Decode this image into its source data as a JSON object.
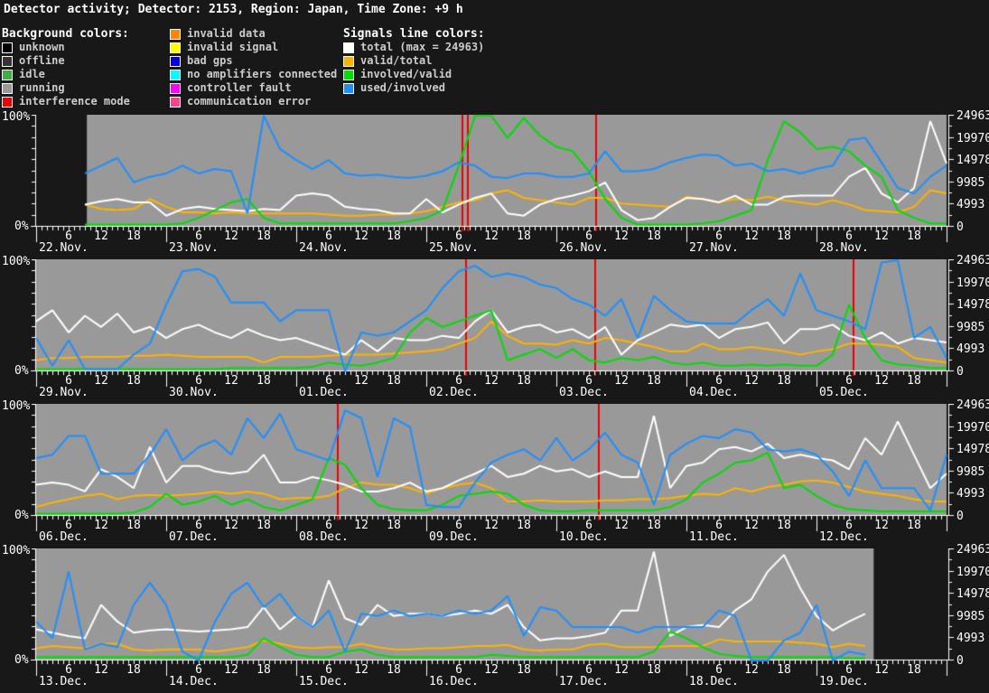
{
  "title": "Detector activity; Detector: 2153, Region: Japan, Time Zone: +9 h",
  "legend": {
    "background_header": "Background colors:",
    "background_items": [
      {
        "label": "unknown",
        "color": "#000000"
      },
      {
        "label": "offline",
        "color": "#333333"
      },
      {
        "label": "idle",
        "color": "#44aa44"
      },
      {
        "label": "running",
        "color": "#999999"
      },
      {
        "label": "interference mode",
        "color": "#ee0000"
      }
    ],
    "status_items": [
      {
        "label": "invalid data",
        "color": "#ff8800"
      },
      {
        "label": "invalid signal",
        "color": "#ffff00"
      },
      {
        "label": "bad gps",
        "color": "#0000dd"
      },
      {
        "label": "no amplifiers connected",
        "color": "#00ffff"
      },
      {
        "label": "controller fault",
        "color": "#ff00ff"
      },
      {
        "label": "communication error",
        "color": "#ff4488"
      }
    ],
    "signals_header": "Signals line colors:",
    "signal_items": [
      {
        "label": "total (max = 24963)",
        "color": "#ffffff"
      },
      {
        "label": "valid/total",
        "color": "#ffb300"
      },
      {
        "label": "involved/valid",
        "color": "#00dd00"
      },
      {
        "label": "used/involved",
        "color": "#1e8fff"
      }
    ]
  },
  "axes": {
    "left_top": "100%",
    "left_bottom": "0%",
    "right_labels": [
      "24963",
      "19970",
      "14978",
      "9985",
      "4993",
      "0"
    ],
    "hour_labels": [
      6,
      12,
      18
    ],
    "max_total": 24963
  },
  "colors": {
    "page_bg": "#181818",
    "axis": "#ffffff",
    "running_bg": "#999999",
    "interference": "#ee0000",
    "total": "#ffffff",
    "valid_total": "#ffb300",
    "involved_valid": "#00dd00",
    "used_involved": "#1e8fff"
  },
  "chart_data": {
    "type": "line",
    "title": "Detector activity; Detector: 2153, Region: Japan, Time Zone: +9 h",
    "ylabel_left": "percent (0-100%)",
    "ylabel_right_max": 24963,
    "x_step_hours": 3,
    "legend_position": "top",
    "grid": false,
    "charts": [
      {
        "name": "week-1",
        "days": [
          "22.Nov.",
          "23.Nov.",
          "24.Nov.",
          "25.Nov.",
          "26.Nov.",
          "27.Nov.",
          "28.Nov."
        ],
        "bg_segments": [
          {
            "state": "running",
            "from_day": 0.39,
            "to_day": 7.0
          }
        ],
        "red_lines_day": [
          3.27,
          3.31,
          4.3
        ],
        "series": {
          "total": [
            null,
            null,
            null,
            20,
            23,
            25,
            22,
            22,
            10,
            16,
            18,
            16,
            15,
            14,
            16,
            15,
            28,
            30,
            28,
            18,
            16,
            15,
            12,
            12,
            25,
            13,
            20,
            26,
            30,
            12,
            10,
            20,
            25,
            28,
            32,
            40,
            15,
            6,
            8,
            18,
            26,
            25,
            22,
            28,
            20,
            20,
            27,
            28,
            28,
            28,
            45,
            53,
            30,
            22,
            35,
            95,
            57
          ],
          "valid_total": [
            null,
            null,
            null,
            20,
            16,
            15,
            16,
            25,
            18,
            13,
            13,
            12,
            13,
            12,
            12,
            12,
            12,
            12,
            11,
            10,
            10,
            11,
            11,
            12,
            14,
            18,
            22,
            24,
            30,
            33,
            26,
            24,
            22,
            20,
            26,
            26,
            21,
            20,
            19,
            18,
            27,
            25,
            22,
            25,
            24,
            27,
            24,
            22,
            20,
            24,
            20,
            15,
            14,
            13,
            18,
            33,
            30
          ],
          "involved_valid": [
            null,
            null,
            null,
            2,
            2,
            2,
            2,
            2,
            2,
            3,
            8,
            15,
            22,
            25,
            8,
            3,
            3,
            3,
            3,
            3,
            3,
            3,
            3,
            5,
            8,
            15,
            55,
            100,
            100,
            80,
            98,
            82,
            72,
            68,
            50,
            25,
            8,
            2,
            2,
            2,
            2,
            3,
            5,
            10,
            15,
            60,
            95,
            85,
            70,
            72,
            68,
            55,
            45,
            15,
            8,
            3,
            3
          ],
          "used_involved": [
            null,
            null,
            null,
            48,
            55,
            62,
            40,
            45,
            48,
            55,
            48,
            52,
            50,
            12,
            100,
            70,
            60,
            52,
            60,
            48,
            46,
            47,
            45,
            44,
            46,
            50,
            58,
            55,
            45,
            44,
            48,
            48,
            45,
            45,
            48,
            68,
            50,
            50,
            52,
            58,
            62,
            65,
            64,
            55,
            57,
            50,
            52,
            48,
            52,
            55,
            78,
            80,
            58,
            35,
            30,
            45,
            55
          ]
        }
      },
      {
        "name": "week-2",
        "days": [
          "29.Nov.",
          "30.Nov.",
          "01.Dec.",
          "02.Dec.",
          "03.Dec.",
          "04.Dec.",
          "05.Dec."
        ],
        "bg_segments": [
          {
            "state": "running",
            "from_day": 0.0,
            "to_day": 7.0
          }
        ],
        "red_lines_day": [
          3.3,
          4.29,
          6.28
        ],
        "series": {
          "total": [
            45,
            55,
            35,
            50,
            40,
            52,
            35,
            40,
            30,
            38,
            42,
            35,
            30,
            38,
            32,
            28,
            30,
            25,
            20,
            15,
            28,
            18,
            30,
            28,
            28,
            32,
            30,
            45,
            55,
            35,
            40,
            42,
            35,
            38,
            30,
            40,
            15,
            28,
            35,
            42,
            40,
            42,
            30,
            38,
            40,
            44,
            25,
            38,
            38,
            42,
            32,
            28,
            35,
            25,
            30,
            28,
            26
          ],
          "valid_total": [
            10,
            12,
            12,
            13,
            13,
            13,
            14,
            14,
            15,
            14,
            13,
            13,
            13,
            13,
            8,
            13,
            13,
            13,
            14,
            15,
            15,
            15,
            16,
            17,
            18,
            20,
            25,
            30,
            45,
            32,
            25,
            25,
            24,
            28,
            25,
            30,
            28,
            25,
            22,
            18,
            18,
            25,
            20,
            20,
            22,
            20,
            18,
            15,
            18,
            20,
            25,
            25,
            24,
            22,
            12,
            10,
            8
          ],
          "involved_valid": [
            2,
            2,
            2,
            2,
            2,
            2,
            2,
            2,
            2,
            2,
            2,
            2,
            3,
            3,
            3,
            3,
            3,
            4,
            8,
            6,
            5,
            8,
            12,
            35,
            48,
            40,
            45,
            50,
            55,
            10,
            15,
            20,
            12,
            20,
            10,
            8,
            12,
            10,
            13,
            8,
            6,
            8,
            5,
            5,
            6,
            5,
            6,
            5,
            5,
            15,
            60,
            30,
            10,
            6,
            5,
            3,
            3
          ],
          "used_involved": [
            30,
            5,
            28,
            2,
            2,
            2,
            15,
            25,
            60,
            90,
            92,
            85,
            62,
            62,
            62,
            45,
            55,
            55,
            55,
            0,
            35,
            32,
            35,
            45,
            55,
            75,
            90,
            95,
            85,
            88,
            85,
            78,
            75,
            65,
            60,
            50,
            65,
            30,
            68,
            55,
            45,
            43,
            43,
            43,
            55,
            65,
            50,
            88,
            55,
            50,
            45,
            38,
            98,
            100,
            30,
            40,
            12
          ]
        }
      },
      {
        "name": "week-3",
        "days": [
          "06.Dec.",
          "07.Dec.",
          "08.Dec.",
          "09.Dec.",
          "10.Dec.",
          "11.Dec.",
          "12.Dec."
        ],
        "bg_segments": [
          {
            "state": "running",
            "from_day": 0.0,
            "to_day": 7.0
          }
        ],
        "red_lines_day": [
          2.31,
          4.32
        ],
        "series": {
          "total": [
            28,
            30,
            28,
            22,
            42,
            35,
            25,
            62,
            30,
            45,
            45,
            40,
            38,
            40,
            55,
            30,
            30,
            35,
            32,
            28,
            22,
            22,
            25,
            30,
            22,
            25,
            32,
            38,
            45,
            35,
            38,
            45,
            40,
            42,
            35,
            40,
            35,
            35,
            90,
            25,
            45,
            48,
            60,
            62,
            58,
            65,
            52,
            55,
            52,
            50,
            42,
            70,
            55,
            85,
            55,
            25,
            38
          ],
          "valid_total": [
            8,
            12,
            15,
            18,
            20,
            15,
            18,
            19,
            18,
            19,
            20,
            22,
            20,
            22,
            20,
            15,
            16,
            16,
            18,
            25,
            30,
            28,
            28,
            25,
            20,
            25,
            28,
            30,
            25,
            13,
            13,
            14,
            13,
            13,
            13,
            14,
            14,
            15,
            15,
            16,
            18,
            20,
            19,
            25,
            22,
            26,
            28,
            31,
            32,
            30,
            26,
            22,
            20,
            18,
            15,
            13,
            13
          ],
          "involved_valid": [
            2,
            2,
            2,
            2,
            2,
            2,
            3,
            8,
            20,
            10,
            13,
            18,
            10,
            15,
            8,
            5,
            10,
            15,
            52,
            46,
            25,
            10,
            6,
            5,
            5,
            10,
            18,
            20,
            22,
            20,
            10,
            5,
            4,
            4,
            5,
            5,
            5,
            5,
            5,
            8,
            15,
            30,
            38,
            48,
            50,
            57,
            25,
            28,
            18,
            10,
            6,
            5,
            4,
            4,
            4,
            4,
            4
          ],
          "used_involved": [
            52,
            55,
            72,
            72,
            38,
            38,
            38,
            55,
            78,
            50,
            62,
            68,
            55,
            88,
            70,
            92,
            60,
            55,
            50,
            95,
            88,
            35,
            88,
            80,
            10,
            8,
            8,
            30,
            48,
            55,
            60,
            50,
            70,
            50,
            60,
            75,
            55,
            48,
            10,
            55,
            65,
            72,
            70,
            78,
            75,
            60,
            58,
            60,
            55,
            40,
            18,
            50,
            25,
            25,
            25,
            5,
            55
          ]
        }
      },
      {
        "name": "week-4",
        "days": [
          "13.Dec.",
          "14.Dec.",
          "15.Dec.",
          "16.Dec.",
          "17.Dec.",
          "18.Dec.",
          "19.Dec."
        ],
        "bg_segments": [
          {
            "state": "running",
            "from_day": 0.0,
            "to_day": 6.44
          }
        ],
        "red_lines_day": [],
        "series": {
          "total": [
            28,
            25,
            22,
            20,
            50,
            35,
            25,
            27,
            28,
            27,
            26,
            27,
            28,
            30,
            48,
            28,
            40,
            30,
            72,
            38,
            32,
            50,
            40,
            42,
            42,
            40,
            42,
            45,
            42,
            50,
            30,
            18,
            20,
            20,
            22,
            25,
            45,
            45,
            98,
            22,
            30,
            32,
            30,
            45,
            55,
            80,
            95,
            65,
            40,
            27,
            35,
            42,
            null,
            null,
            null,
            null,
            null
          ],
          "valid_total": [
            11,
            13,
            12,
            11,
            15,
            15,
            10,
            9,
            10,
            10,
            10,
            8,
            10,
            12,
            18,
            15,
            12,
            11,
            12,
            12,
            15,
            12,
            10,
            10,
            11,
            11,
            12,
            13,
            13,
            14,
            10,
            9,
            10,
            10,
            14,
            15,
            12,
            12,
            12,
            13,
            13,
            13,
            19,
            17,
            17,
            17,
            17,
            16,
            15,
            12,
            15,
            13,
            null,
            null,
            null,
            null,
            null
          ],
          "involved_valid": [
            3,
            3,
            3,
            3,
            3,
            3,
            3,
            3,
            3,
            3,
            3,
            3,
            3,
            5,
            20,
            12,
            5,
            3,
            3,
            8,
            10,
            5,
            3,
            3,
            3,
            3,
            3,
            3,
            5,
            4,
            3,
            3,
            3,
            3,
            3,
            3,
            3,
            3,
            8,
            26,
            20,
            12,
            6,
            4,
            3,
            3,
            3,
            3,
            3,
            3,
            2,
            2,
            null,
            null,
            null,
            null,
            null
          ],
          "used_involved": [
            35,
            20,
            80,
            10,
            15,
            12,
            50,
            70,
            50,
            8,
            0,
            35,
            60,
            70,
            48,
            60,
            40,
            30,
            45,
            8,
            42,
            40,
            45,
            40,
            42,
            40,
            45,
            42,
            45,
            58,
            22,
            48,
            45,
            30,
            30,
            30,
            30,
            25,
            30,
            30,
            30,
            30,
            45,
            40,
            0,
            0,
            18,
            25,
            50,
            0,
            8,
            5,
            null,
            null,
            null,
            null,
            null
          ]
        }
      }
    ]
  }
}
